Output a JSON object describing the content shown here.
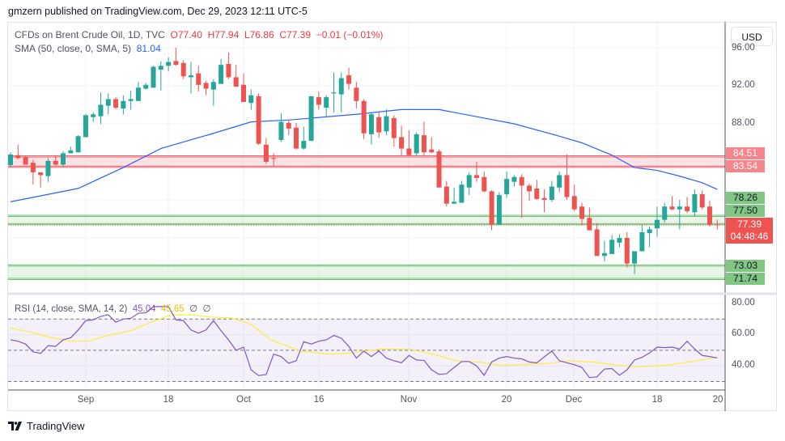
{
  "publish_line": "gmzern published on TradingView.com, Dec 29, 2023 12:11 UTC-5",
  "legend": {
    "symbol": "CFDs on Brent Crude Oil, 1D, TVC",
    "open": "O77.40",
    "high": "H77.94",
    "low": "L76.86",
    "close": "C77.39",
    "change": "−0.01 (−0.01%)",
    "sma_label": "SMA (50, close, 0, SMA, 5)",
    "sma_value": "81.04",
    "rsi_label": "RSI (14, close, SMA, 14, 2)",
    "rsi_value": "45.04",
    "rsi_sma_value": "45.65",
    "rsi_extra1": "∅",
    "rsi_extra2": "∅"
  },
  "currency_button": "USD",
  "price_axis": {
    "labels": [
      "96.00",
      "92.00",
      "88.00"
    ]
  },
  "badges": {
    "resistance_top": "84.51",
    "resistance_bottom": "83.54",
    "support1_top": "78.26",
    "support1_bottom": "77.50",
    "support2_top": "73.03",
    "support2_bottom": "71.74",
    "current_price": "77.39",
    "countdown": "04:48:46"
  },
  "rsi_axis": {
    "labels": [
      "80.00",
      "60.00",
      "40.00"
    ]
  },
  "time_axis": [
    "Sep",
    "18",
    "Oct",
    "16",
    "Nov",
    "20",
    "Dec",
    "18",
    "20"
  ],
  "brand": "TradingView",
  "colors": {
    "up": "#26a69a",
    "down": "#ef5350",
    "sma": "#2962ff",
    "rsi": "#7e57c2",
    "rsi_sma": "#ffeb3b",
    "resistance": "#f23645",
    "support": "#4caf50"
  },
  "chart_data": {
    "type": "candlestick",
    "title": "CFDs on Brent Crude Oil, 1D, TVC",
    "ohlc": [
      [
        83.66,
        85.0,
        83.4,
        84.77
      ],
      [
        84.7,
        85.8,
        84.25,
        84.4
      ],
      [
        84.5,
        84.6,
        83.7,
        83.7
      ],
      [
        83.9,
        84.2,
        81.6,
        82.9
      ],
      [
        82.9,
        82.9,
        81.3,
        82.6
      ],
      [
        82.5,
        84.4,
        81.9,
        84.1
      ],
      [
        84.1,
        84.7,
        83.6,
        83.7
      ],
      [
        83.7,
        85.1,
        83.4,
        84.9
      ],
      [
        84.9,
        85.6,
        84.9,
        85.2
      ],
      [
        85.0,
        86.8,
        85.0,
        86.7
      ],
      [
        86.6,
        89.0,
        86.6,
        88.9
      ],
      [
        88.7,
        89.2,
        88.2,
        89.0
      ],
      [
        88.8,
        91.3,
        88.0,
        90.0
      ],
      [
        89.9,
        91.2,
        89.0,
        90.6
      ],
      [
        90.6,
        90.8,
        89.5,
        89.7
      ],
      [
        89.6,
        91.0,
        89.0,
        90.4
      ],
      [
        90.4,
        91.5,
        89.5,
        90.6
      ],
      [
        90.4,
        92.4,
        90.4,
        91.8
      ],
      [
        91.7,
        92.3,
        91.6,
        92.1
      ],
      [
        91.8,
        94.1,
        91.8,
        94.0
      ],
      [
        93.7,
        94.6,
        91.5,
        94.1
      ],
      [
        94.1,
        95.0,
        93.5,
        94.5
      ],
      [
        94.6,
        96.0,
        94.1,
        94.2
      ],
      [
        94.4,
        94.7,
        92.7,
        93.0
      ],
      [
        92.9,
        94.5,
        91.2,
        93.1
      ],
      [
        93.3,
        94.1,
        91.4,
        92.1
      ],
      [
        92.3,
        92.5,
        91.0,
        91.7
      ],
      [
        91.6,
        92.7,
        89.9,
        92.4
      ],
      [
        92.2,
        94.8,
        92.2,
        94.2
      ],
      [
        94.3,
        95.5,
        92.7,
        92.9
      ],
      [
        92.9,
        94.2,
        91.9,
        91.9
      ],
      [
        92.1,
        93.3,
        90.3,
        90.3
      ],
      [
        90.2,
        91.6,
        89.5,
        91.0
      ],
      [
        90.9,
        91.2,
        85.8,
        85.9
      ],
      [
        85.8,
        86.5,
        83.8,
        84.0
      ],
      [
        84.4,
        84.9,
        83.5,
        84.3
      ],
      [
        86.3,
        89.1,
        86.1,
        88.2
      ],
      [
        88.1,
        88.4,
        86.8,
        87.5
      ],
      [
        87.6,
        88.1,
        85.3,
        85.4
      ],
      [
        85.4,
        87.7,
        85.3,
        86.2
      ],
      [
        86.2,
        90.9,
        86.2,
        90.9
      ],
      [
        90.8,
        91.4,
        89.5,
        90.0
      ],
      [
        89.7,
        91.0,
        88.8,
        90.8
      ],
      [
        91.2,
        93.4,
        89.2,
        91.3
      ],
      [
        91.1,
        93.4,
        89.2,
        92.8
      ],
      [
        93.1,
        93.9,
        91.6,
        92.2
      ],
      [
        91.8,
        92.4,
        89.6,
        90.4
      ],
      [
        90.4,
        90.6,
        86.4,
        87.0
      ],
      [
        86.9,
        89.2,
        85.8,
        89.0
      ],
      [
        88.7,
        89.2,
        86.5,
        87.1
      ],
      [
        87.2,
        89.5,
        86.8,
        88.8
      ],
      [
        88.6,
        88.9,
        85.6,
        86.5
      ],
      [
        86.6,
        87.8,
        84.6,
        85.4
      ],
      [
        85.4,
        87.3,
        84.6,
        84.7
      ],
      [
        84.9,
        87.1,
        84.6,
        86.9
      ],
      [
        86.8,
        88.2,
        84.6,
        85.0
      ],
      [
        85.3,
        86.6,
        84.9,
        85.0
      ],
      [
        85.1,
        85.3,
        81.3,
        81.3
      ],
      [
        81.4,
        82.0,
        79.3,
        79.6
      ],
      [
        79.6,
        81.3,
        79.6,
        79.8
      ],
      [
        79.7,
        82.0,
        79.7,
        81.6
      ],
      [
        81.3,
        82.9,
        80.5,
        82.6
      ],
      [
        82.6,
        84.0,
        81.9,
        82.3
      ],
      [
        82.4,
        83.0,
        80.8,
        80.9
      ],
      [
        80.9,
        81.0,
        76.8,
        77.4
      ],
      [
        77.4,
        80.8,
        77.4,
        80.5
      ],
      [
        80.6,
        83.0,
        80.2,
        82.2
      ],
      [
        81.9,
        82.6,
        81.4,
        82.4
      ],
      [
        82.4,
        82.7,
        78.1,
        81.5
      ],
      [
        81.5,
        81.7,
        79.9,
        80.9
      ],
      [
        81.2,
        82.1,
        80.0,
        80.1
      ],
      [
        80.2,
        81.1,
        78.7,
        80.0
      ],
      [
        80.0,
        82.0,
        79.8,
        81.4
      ],
      [
        81.3,
        83.0,
        80.8,
        82.6
      ],
      [
        82.6,
        84.8,
        80.0,
        80.3
      ],
      [
        80.4,
        81.6,
        78.8,
        79.0
      ],
      [
        79.3,
        79.7,
        77.3,
        78.0
      ],
      [
        78.1,
        79.2,
        76.8,
        76.8
      ],
      [
        76.9,
        77.5,
        74.1,
        74.1
      ],
      [
        74.1,
        75.7,
        73.5,
        74.4
      ],
      [
        74.3,
        76.3,
        74.3,
        75.8
      ],
      [
        75.5,
        76.4,
        75.0,
        76.0
      ],
      [
        76.0,
        76.6,
        72.9,
        73.3
      ],
      [
        73.3,
        74.6,
        72.2,
        74.6
      ],
      [
        74.6,
        77.4,
        74.6,
        76.6
      ],
      [
        76.5,
        77.2,
        75.0,
        76.9
      ],
      [
        77.0,
        79.3,
        76.1,
        77.9
      ],
      [
        77.9,
        79.7,
        77.6,
        79.3
      ],
      [
        79.3,
        80.4,
        78.9,
        79.0
      ],
      [
        79.0,
        80.0,
        76.9,
        79.3
      ],
      [
        79.3,
        80.3,
        78.6,
        78.8
      ],
      [
        78.7,
        81.1,
        78.3,
        80.6
      ],
      [
        80.6,
        81.0,
        79.0,
        79.2
      ],
      [
        79.3,
        79.9,
        77.2,
        77.4
      ],
      [
        77.4,
        77.94,
        76.86,
        77.39
      ]
    ],
    "sma50": [
      [
        0,
        79.8
      ],
      [
        9,
        81.2
      ],
      [
        15,
        83.4
      ],
      [
        20,
        85.4
      ],
      [
        27,
        87.0
      ],
      [
        32,
        88.2
      ],
      [
        37,
        88.4
      ],
      [
        46,
        89.0
      ],
      [
        52,
        89.5
      ],
      [
        57,
        89.5
      ],
      [
        61,
        88.9
      ],
      [
        67,
        88.0
      ],
      [
        73,
        86.7
      ],
      [
        76,
        86.0
      ],
      [
        80,
        84.7
      ],
      [
        83,
        83.4
      ],
      [
        86,
        83.1
      ],
      [
        89,
        82.5
      ],
      [
        92,
        81.8
      ],
      [
        94,
        81.1
      ]
    ],
    "rsi": [
      56.7,
      55.8,
      54,
      49,
      48,
      53,
      52.5,
      56.7,
      58,
      63,
      69,
      69.5,
      71.7,
      72.8,
      68,
      70,
      70.5,
      73.7,
      74,
      78,
      78,
      78,
      69.5,
      69,
      63,
      61,
      63,
      69,
      62.5,
      56.7,
      50,
      52,
      37.5,
      33.8,
      34.5,
      47.5,
      46,
      41.7,
      43.3,
      55.5,
      54,
      55.8,
      56.7,
      59.5,
      57.8,
      52.5,
      45,
      49.5,
      46,
      49.5,
      45,
      43.3,
      42,
      46.7,
      43.8,
      43.5,
      37.5,
      34.5,
      35,
      39,
      42.8,
      42.8,
      40,
      34,
      42.5,
      45,
      46,
      45,
      44.5,
      42.5,
      42,
      45.8,
      49.5,
      43.3,
      42,
      40.8,
      39,
      32.5,
      33,
      38,
      38.3,
      34,
      37.5,
      43.8,
      45.5,
      48.3,
      52,
      51.7,
      52,
      50.8,
      55.8,
      50.8,
      46.7,
      46,
      45.04
    ],
    "rsi_sma": [
      [
        0,
        64.2
      ],
      [
        2.6,
        61.7
      ],
      [
        5.3,
        58.3
      ],
      [
        8,
        55.8
      ],
      [
        10.3,
        55.8
      ],
      [
        13.3,
        60
      ],
      [
        16,
        62.5
      ],
      [
        18.6,
        67.8
      ],
      [
        21.3,
        72.5
      ],
      [
        24,
        72.8
      ],
      [
        26.6,
        71.3
      ],
      [
        29.3,
        70.8
      ],
      [
        32,
        66.7
      ],
      [
        34.6,
        56.7
      ],
      [
        38.6,
        49.5
      ],
      [
        42.6,
        47.5
      ],
      [
        45.3,
        48.3
      ],
      [
        49.3,
        50.8
      ],
      [
        53.3,
        50.5
      ],
      [
        56,
        47.8
      ],
      [
        59.3,
        43.3
      ],
      [
        62.7,
        42.2
      ],
      [
        65.3,
        40.3
      ],
      [
        69.4,
        41.2
      ],
      [
        72,
        41.7
      ],
      [
        74,
        43.3
      ],
      [
        77.4,
        42.5
      ],
      [
        80.7,
        40.5
      ],
      [
        83.4,
        39.5
      ],
      [
        87.4,
        40.5
      ],
      [
        90.7,
        42.8
      ],
      [
        94,
        45.65
      ]
    ],
    "rsi_levels": [
      70,
      50,
      30
    ],
    "ylim": [
      70,
      97
    ],
    "rsi_ylim": [
      25,
      82
    ]
  }
}
